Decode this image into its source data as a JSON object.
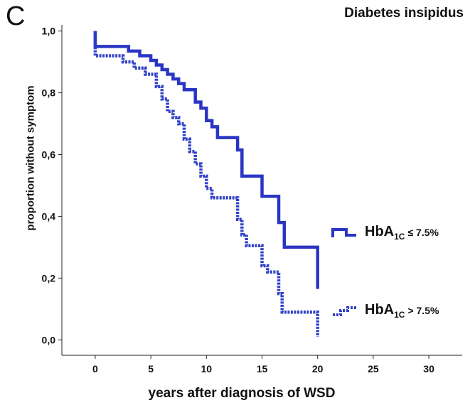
{
  "panel_letter": "C",
  "chart_data": {
    "type": "line",
    "step": true,
    "title": "Diabetes insipidus",
    "xlabel": "years after diagnosis of WSD",
    "ylabel": "proportion without symptom",
    "xlim": [
      -3,
      33
    ],
    "ylim": [
      -0.05,
      1.02
    ],
    "x_ticks": [
      0,
      5,
      10,
      15,
      20,
      25,
      30
    ],
    "x_tick_labels": [
      "0",
      "5",
      "10",
      "15",
      "20",
      "25",
      "30"
    ],
    "y_ticks": [
      0.0,
      0.2,
      0.4,
      0.6,
      0.8,
      1.0
    ],
    "y_tick_labels": [
      "0,0",
      "0,2",
      "0,4",
      "0,6",
      "0,8",
      "1,0"
    ],
    "grid": false,
    "legend_position": "right",
    "series": [
      {
        "name_main": "HbA",
        "name_sub": "1C",
        "name_cond": "≤ 7.5%",
        "color": "#2b35c4",
        "dash": false,
        "x": [
          0,
          0,
          0,
          3.0,
          3.0,
          4.0,
          4.0,
          5.0,
          5.0,
          5.5,
          5.5,
          6.0,
          6.0,
          6.5,
          6.5,
          7.0,
          7.0,
          7.5,
          7.5,
          8.0,
          8.0,
          9.0,
          9.0,
          9.5,
          9.5,
          10.0,
          10.0,
          10.5,
          10.5,
          11.0,
          11.0,
          12.8,
          12.8,
          13.2,
          13.2,
          15.0,
          15.0,
          16.5,
          16.5,
          17.0,
          17.0,
          20.0,
          20.0
        ],
        "y": [
          1.0,
          0.99,
          0.95,
          0.95,
          0.935,
          0.935,
          0.92,
          0.92,
          0.905,
          0.905,
          0.89,
          0.89,
          0.875,
          0.875,
          0.86,
          0.86,
          0.845,
          0.845,
          0.83,
          0.83,
          0.81,
          0.81,
          0.77,
          0.77,
          0.75,
          0.75,
          0.71,
          0.71,
          0.69,
          0.69,
          0.655,
          0.655,
          0.615,
          0.615,
          0.53,
          0.53,
          0.465,
          0.465,
          0.38,
          0.38,
          0.3,
          0.3,
          0.165
        ]
      },
      {
        "name_main": "HbA",
        "name_sub": "1C",
        "name_cond": "> 7.5%",
        "color": "#3040c8",
        "dash": true,
        "x": [
          0,
          0,
          0,
          2.5,
          2.5,
          3.5,
          3.5,
          4.5,
          4.5,
          5.5,
          5.5,
          6.0,
          6.0,
          6.5,
          6.5,
          7.0,
          7.0,
          7.5,
          7.5,
          8.0,
          8.0,
          8.5,
          8.5,
          9.0,
          9.0,
          9.5,
          9.5,
          10.0,
          10.0,
          10.5,
          10.5,
          12.8,
          12.8,
          13.2,
          13.2,
          13.6,
          13.6,
          15.0,
          15.0,
          15.5,
          15.5,
          16.5,
          16.5,
          16.8,
          16.8,
          20.0,
          20.0
        ],
        "y": [
          1.0,
          0.96,
          0.92,
          0.92,
          0.9,
          0.9,
          0.88,
          0.88,
          0.86,
          0.86,
          0.82,
          0.82,
          0.78,
          0.78,
          0.74,
          0.74,
          0.72,
          0.72,
          0.7,
          0.7,
          0.65,
          0.65,
          0.61,
          0.61,
          0.57,
          0.57,
          0.53,
          0.53,
          0.49,
          0.49,
          0.46,
          0.46,
          0.39,
          0.39,
          0.34,
          0.34,
          0.305,
          0.305,
          0.24,
          0.24,
          0.22,
          0.22,
          0.15,
          0.15,
          0.09,
          0.09,
          0.01
        ]
      }
    ]
  }
}
